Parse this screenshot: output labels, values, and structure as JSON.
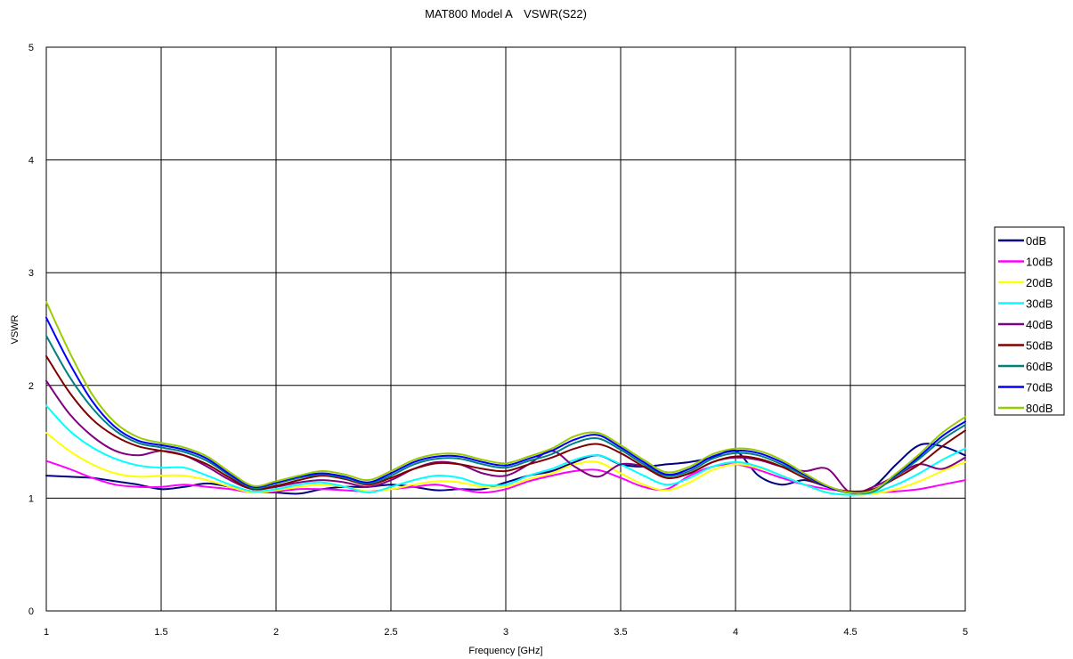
{
  "chart_data": {
    "type": "line",
    "title": "MAT800 Model A　VSWR(S22)",
    "xlabel": "Frequency [GHz]",
    "ylabel": "VSWR",
    "xlim": [
      1,
      5
    ],
    "ylim": [
      0,
      5
    ],
    "x_ticks": [
      "1",
      "1.5",
      "2",
      "2.5",
      "3",
      "3.5",
      "4",
      "4.5",
      "5"
    ],
    "y_ticks": [
      "0",
      "1",
      "2",
      "3",
      "4",
      "5"
    ],
    "grid": true,
    "legend_position": "right",
    "x": [
      1.0,
      1.1,
      1.2,
      1.3,
      1.4,
      1.5,
      1.6,
      1.7,
      1.8,
      1.9,
      2.0,
      2.1,
      2.2,
      2.3,
      2.4,
      2.5,
      2.6,
      2.7,
      2.8,
      2.9,
      3.0,
      3.1,
      3.2,
      3.3,
      3.4,
      3.5,
      3.6,
      3.7,
      3.8,
      3.9,
      4.0,
      4.1,
      4.2,
      4.3,
      4.4,
      4.5,
      4.6,
      4.7,
      4.8,
      4.9,
      5.0
    ],
    "series": [
      {
        "name": "0dB",
        "color": "#000080",
        "values": [
          1.2,
          1.19,
          1.18,
          1.15,
          1.12,
          1.08,
          1.1,
          1.13,
          1.1,
          1.06,
          1.05,
          1.04,
          1.08,
          1.1,
          1.1,
          1.12,
          1.1,
          1.07,
          1.08,
          1.08,
          1.14,
          1.2,
          1.24,
          1.32,
          1.38,
          1.3,
          1.28,
          1.3,
          1.32,
          1.36,
          1.42,
          1.2,
          1.12,
          1.16,
          1.1,
          1.05,
          1.1,
          1.3,
          1.47,
          1.46,
          1.38
        ]
      },
      {
        "name": "10dB",
        "color": "#ff00ff",
        "values": [
          1.33,
          1.26,
          1.18,
          1.12,
          1.1,
          1.1,
          1.12,
          1.1,
          1.08,
          1.05,
          1.06,
          1.08,
          1.08,
          1.07,
          1.06,
          1.08,
          1.1,
          1.12,
          1.08,
          1.05,
          1.08,
          1.15,
          1.2,
          1.24,
          1.25,
          1.18,
          1.1,
          1.08,
          1.2,
          1.28,
          1.3,
          1.25,
          1.18,
          1.12,
          1.08,
          1.06,
          1.05,
          1.06,
          1.08,
          1.12,
          1.16
        ]
      },
      {
        "name": "20dB",
        "color": "#ffff00",
        "values": [
          1.58,
          1.42,
          1.3,
          1.22,
          1.19,
          1.2,
          1.2,
          1.16,
          1.1,
          1.05,
          1.07,
          1.1,
          1.12,
          1.1,
          1.06,
          1.08,
          1.12,
          1.15,
          1.14,
          1.1,
          1.1,
          1.17,
          1.22,
          1.3,
          1.32,
          1.22,
          1.12,
          1.07,
          1.14,
          1.25,
          1.3,
          1.27,
          1.2,
          1.12,
          1.05,
          1.03,
          1.04,
          1.08,
          1.15,
          1.24,
          1.32
        ]
      },
      {
        "name": "30dB",
        "color": "#00ffff",
        "values": [
          1.82,
          1.6,
          1.45,
          1.35,
          1.29,
          1.27,
          1.27,
          1.2,
          1.12,
          1.06,
          1.08,
          1.12,
          1.14,
          1.1,
          1.05,
          1.1,
          1.16,
          1.2,
          1.18,
          1.12,
          1.12,
          1.2,
          1.26,
          1.34,
          1.38,
          1.3,
          1.2,
          1.12,
          1.18,
          1.28,
          1.32,
          1.28,
          1.2,
          1.12,
          1.05,
          1.03,
          1.05,
          1.12,
          1.22,
          1.34,
          1.44
        ]
      },
      {
        "name": "40dB",
        "color": "#800080",
        "values": [
          2.04,
          1.75,
          1.55,
          1.42,
          1.38,
          1.42,
          1.38,
          1.28,
          1.16,
          1.08,
          1.1,
          1.14,
          1.16,
          1.14,
          1.1,
          1.16,
          1.26,
          1.32,
          1.3,
          1.22,
          1.2,
          1.3,
          1.42,
          1.28,
          1.19,
          1.3,
          1.28,
          1.18,
          1.22,
          1.32,
          1.36,
          1.34,
          1.28,
          1.24,
          1.26,
          1.05,
          1.1,
          1.2,
          1.3,
          1.26,
          1.36
        ]
      },
      {
        "name": "50dB",
        "color": "#800000",
        "values": [
          2.26,
          1.94,
          1.7,
          1.55,
          1.46,
          1.42,
          1.38,
          1.3,
          1.18,
          1.08,
          1.11,
          1.16,
          1.2,
          1.17,
          1.12,
          1.18,
          1.26,
          1.31,
          1.3,
          1.26,
          1.24,
          1.3,
          1.36,
          1.44,
          1.48,
          1.4,
          1.28,
          1.18,
          1.22,
          1.32,
          1.37,
          1.35,
          1.28,
          1.18,
          1.1,
          1.06,
          1.08,
          1.18,
          1.3,
          1.46,
          1.6
        ]
      },
      {
        "name": "60dB",
        "color": "#008080",
        "values": [
          2.44,
          2.08,
          1.8,
          1.6,
          1.49,
          1.45,
          1.41,
          1.33,
          1.2,
          1.09,
          1.13,
          1.18,
          1.21,
          1.18,
          1.13,
          1.2,
          1.3,
          1.35,
          1.35,
          1.3,
          1.27,
          1.33,
          1.39,
          1.49,
          1.53,
          1.43,
          1.3,
          1.2,
          1.24,
          1.35,
          1.4,
          1.38,
          1.3,
          1.2,
          1.1,
          1.05,
          1.06,
          1.2,
          1.35,
          1.52,
          1.65
        ]
      },
      {
        "name": "70dB",
        "color": "#0000ff",
        "values": [
          2.6,
          2.2,
          1.86,
          1.63,
          1.51,
          1.47,
          1.43,
          1.35,
          1.21,
          1.1,
          1.14,
          1.19,
          1.22,
          1.19,
          1.14,
          1.22,
          1.32,
          1.37,
          1.37,
          1.32,
          1.29,
          1.35,
          1.42,
          1.52,
          1.56,
          1.45,
          1.32,
          1.21,
          1.26,
          1.37,
          1.42,
          1.4,
          1.32,
          1.21,
          1.1,
          1.05,
          1.07,
          1.21,
          1.37,
          1.55,
          1.68
        ]
      },
      {
        "name": "80dB",
        "color": "#99cc00",
        "values": [
          2.74,
          2.3,
          1.92,
          1.67,
          1.54,
          1.49,
          1.45,
          1.37,
          1.23,
          1.11,
          1.15,
          1.2,
          1.24,
          1.21,
          1.16,
          1.24,
          1.34,
          1.39,
          1.39,
          1.34,
          1.31,
          1.37,
          1.44,
          1.55,
          1.58,
          1.47,
          1.34,
          1.23,
          1.28,
          1.39,
          1.44,
          1.42,
          1.34,
          1.22,
          1.11,
          1.05,
          1.07,
          1.22,
          1.39,
          1.58,
          1.72
        ]
      }
    ]
  }
}
